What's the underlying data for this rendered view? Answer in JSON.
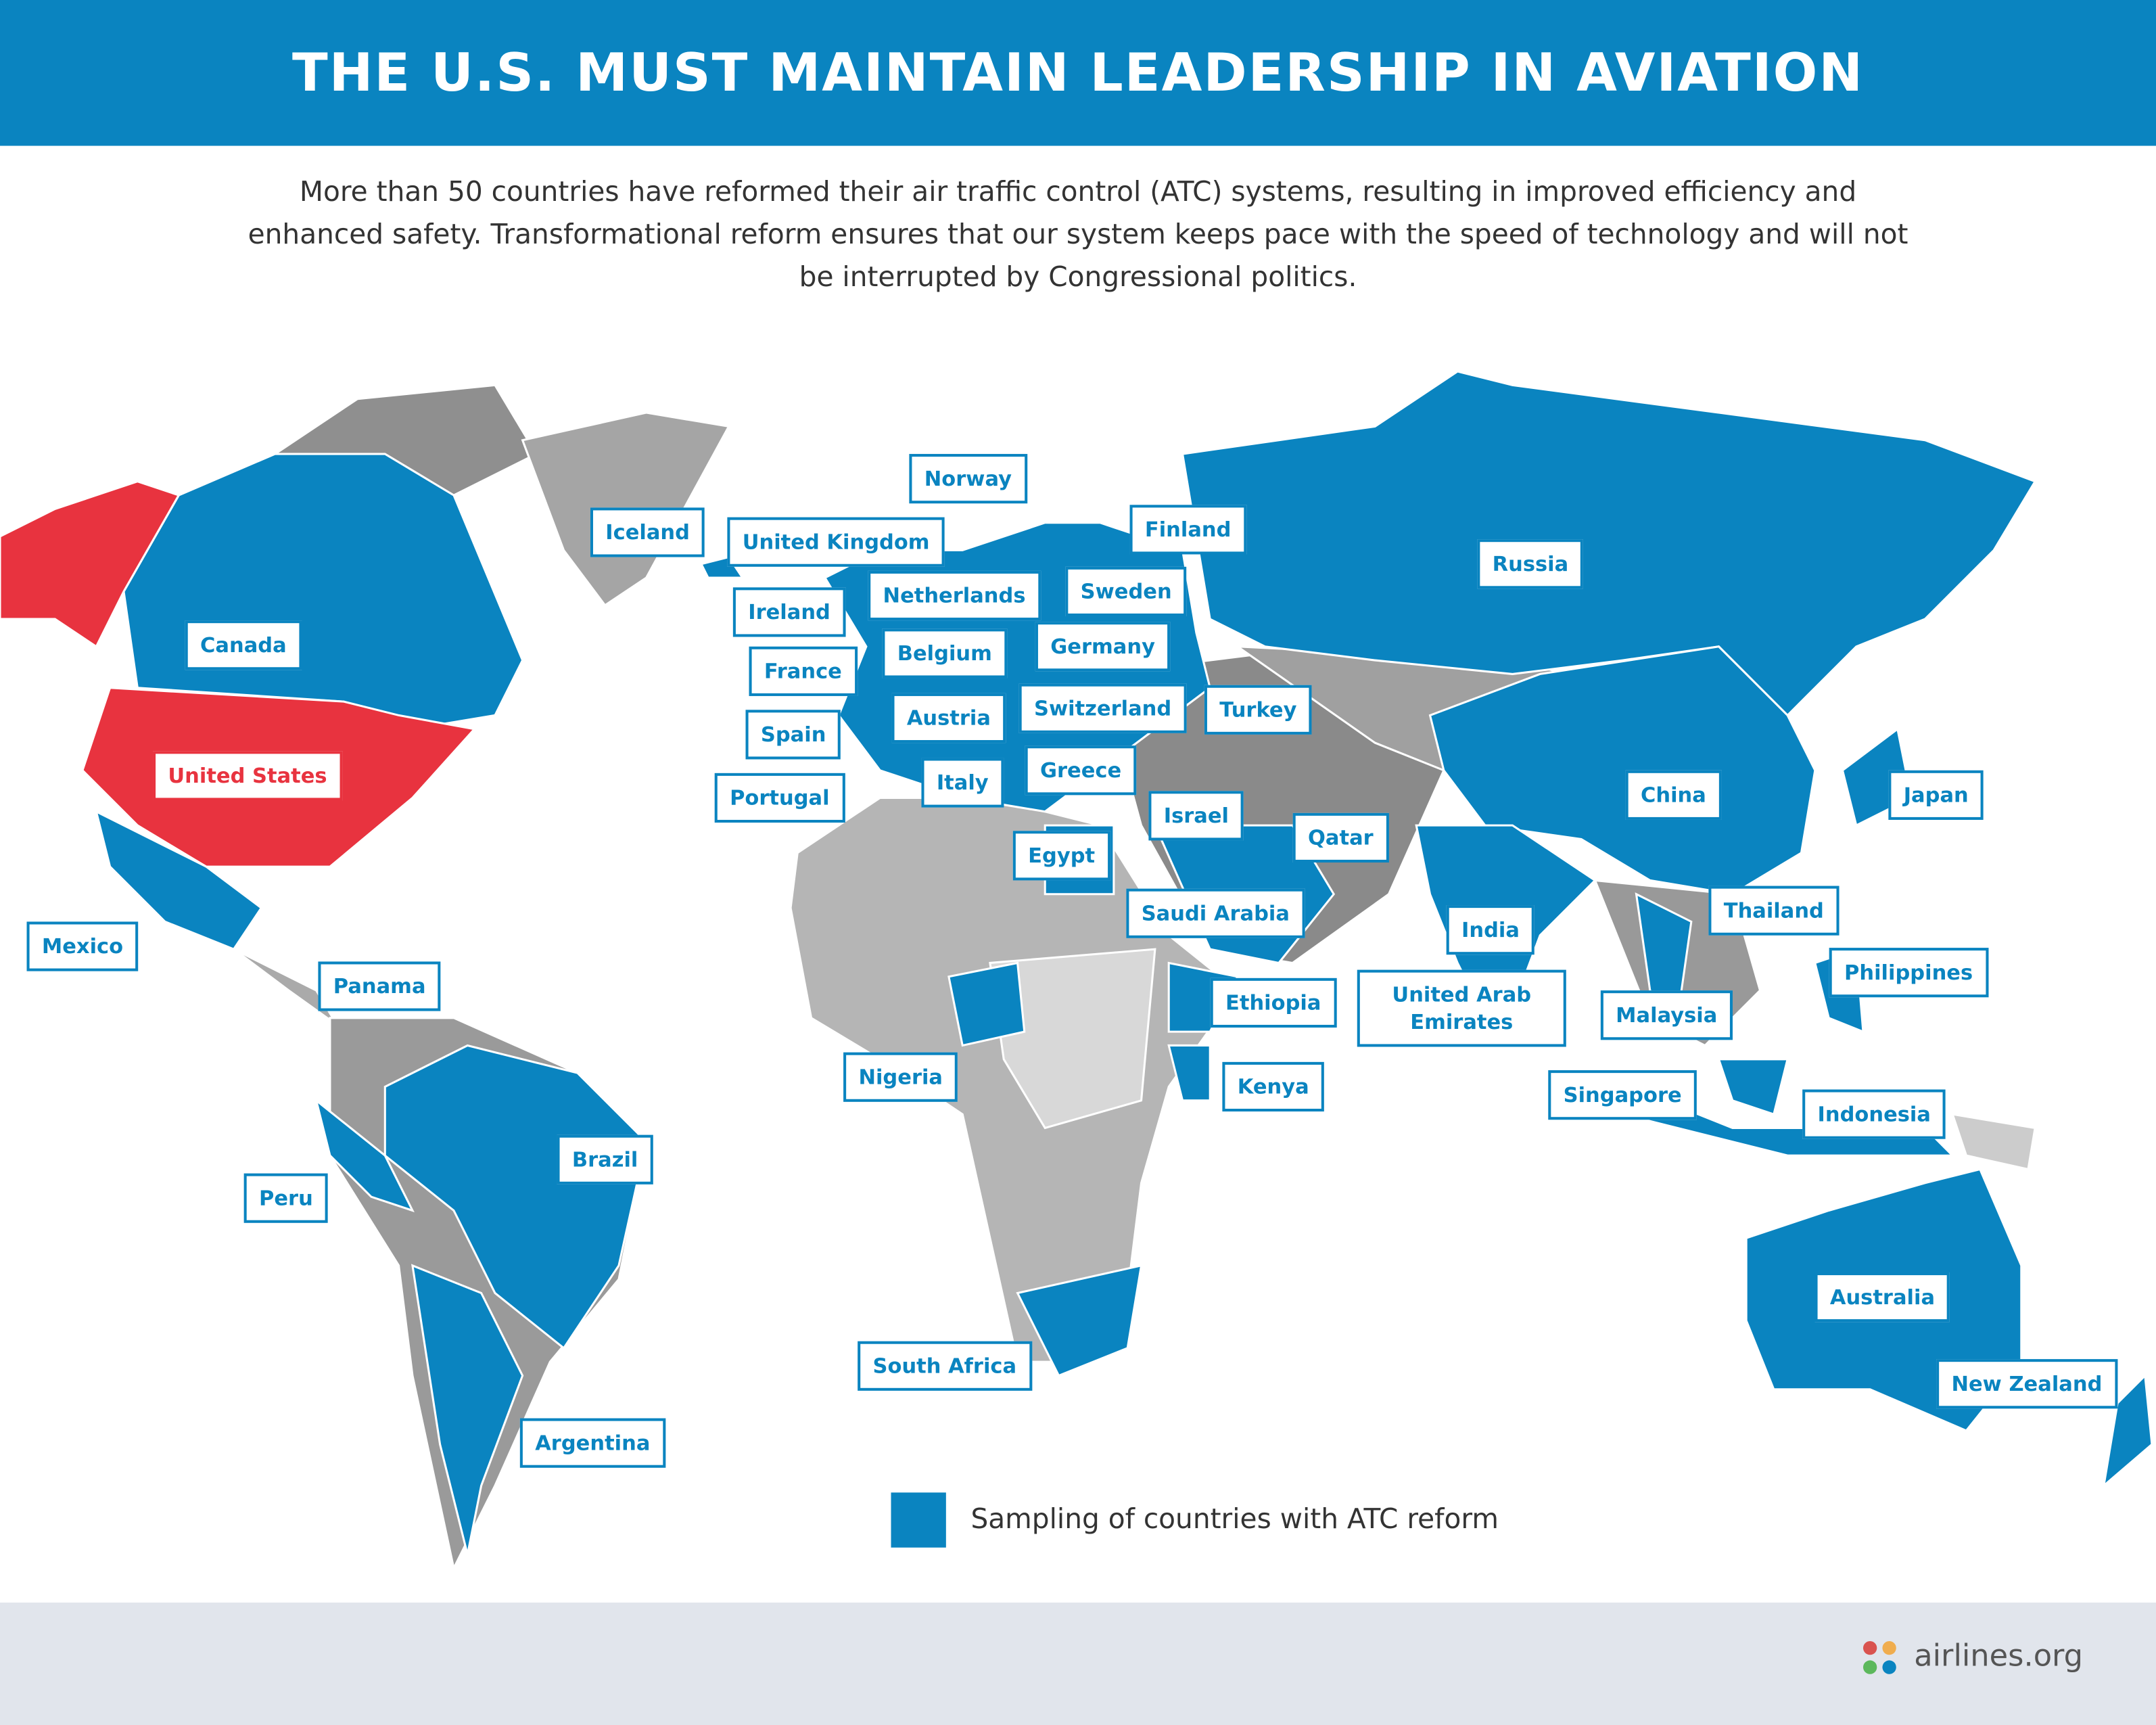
{
  "header": {
    "title": "THE U.S. MUST MAINTAIN LEADERSHIP IN AVIATION"
  },
  "intro": "More than 50 countries have reformed their air traffic control (ATC) systems, resulting in improved efficiency and enhanced safety. Transformational reform ensures that our system keeps pace with the speed of technology and will not be interrupted by Congressional politics.",
  "labels": [
    "Norway",
    "Iceland",
    "United Kingdom",
    "Finland",
    "Russia",
    "Ireland",
    "Netherlands",
    "Sweden",
    "Canada",
    "Germany",
    "Belgium",
    "France",
    "Austria",
    "Switzerland",
    "Turkey",
    "Spain",
    "United States",
    "Greece",
    "Italy",
    "Portugal",
    "China",
    "Japan",
    "Israel",
    "Qatar",
    "Egypt",
    "Saudi Arabia",
    "Thailand",
    "India",
    "Mexico",
    "Panama",
    "Philippines",
    "Ethiopia",
    "United Arab Emirates",
    "Malaysia",
    "Nigeria",
    "Kenya",
    "Singapore",
    "Indonesia",
    "Brazil",
    "Peru",
    "Australia",
    "South Africa",
    "New Zealand",
    "Argentina"
  ],
  "legend": {
    "label": "Sampling of countries with ATC reform"
  },
  "footer": {
    "brand": "airlines.org"
  }
}
